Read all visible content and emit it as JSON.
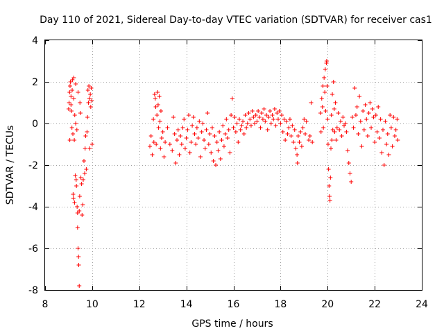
{
  "chart_data": {
    "type": "scatter",
    "title": "Day 110 of 2021, Sidereal Day-to-day VTEC variation (SDTVAR) for receiver cas1",
    "xlabel": "GPS time / hours",
    "ylabel": "SDTVAR / TECUs",
    "xlim": [
      8,
      24
    ],
    "ylim": [
      -8,
      4
    ],
    "xticks": [
      8,
      10,
      12,
      14,
      16,
      18,
      20,
      22,
      24
    ],
    "yticks": [
      -8,
      -6,
      -4,
      -2,
      0,
      2,
      4
    ],
    "xtick_labels": [
      "8",
      "10",
      "12",
      "14",
      "16",
      "18",
      "20",
      "22",
      "24"
    ],
    "ytick_labels": [
      "-8",
      "-6",
      "-4",
      "-2",
      "0",
      "2",
      "4"
    ],
    "grid": true,
    "marker": "+",
    "color": "#ff0000",
    "series": [
      {
        "name": "SDTVAR",
        "points": [
          [
            9.0,
            0.7
          ],
          [
            9.02,
            1.0
          ],
          [
            9.04,
            1.5
          ],
          [
            9.05,
            -0.8
          ],
          [
            9.06,
            1.8
          ],
          [
            9.08,
            2.0
          ],
          [
            9.1,
            1.3
          ],
          [
            9.1,
            0.9
          ],
          [
            9.12,
            0.6
          ],
          [
            9.14,
            -0.2
          ],
          [
            9.15,
            1.6
          ],
          [
            9.16,
            2.1
          ],
          [
            9.18,
            -0.5
          ],
          [
            9.19,
            -3.4
          ],
          [
            9.2,
            -3.6
          ],
          [
            9.22,
            2.2
          ],
          [
            9.22,
            1.2
          ],
          [
            9.24,
            -0.8
          ],
          [
            9.25,
            -3.8
          ],
          [
            9.26,
            0.4
          ],
          [
            9.28,
            -2.5
          ],
          [
            9.3,
            1.9
          ],
          [
            9.3,
            0.0
          ],
          [
            9.32,
            -2.7
          ],
          [
            9.33,
            -3.0
          ],
          [
            9.35,
            -0.3
          ],
          [
            9.36,
            -4.0
          ],
          [
            9.38,
            -4.3
          ],
          [
            9.38,
            -5.0
          ],
          [
            9.4,
            1.5
          ],
          [
            9.4,
            -6.0
          ],
          [
            9.42,
            -6.4
          ],
          [
            9.43,
            -6.8
          ],
          [
            9.45,
            -7.8
          ],
          [
            9.45,
            -4.2
          ],
          [
            9.47,
            -3.5
          ],
          [
            9.48,
            1.0
          ],
          [
            9.5,
            0.5
          ],
          [
            9.52,
            -2.6
          ],
          [
            9.55,
            -2.9
          ],
          [
            9.57,
            -4.4
          ],
          [
            9.6,
            -3.9
          ],
          [
            9.62,
            -2.7
          ],
          [
            9.65,
            -1.8
          ],
          [
            9.68,
            -2.4
          ],
          [
            9.7,
            -1.2
          ],
          [
            9.72,
            -0.6
          ],
          [
            9.75,
            -2.2
          ],
          [
            9.78,
            -0.4
          ],
          [
            9.8,
            0.3
          ],
          [
            9.82,
            1.6
          ],
          [
            9.84,
            1.0
          ],
          [
            9.86,
            1.8
          ],
          [
            9.88,
            1.2
          ],
          [
            9.9,
            -1.2
          ],
          [
            9.92,
            1.4
          ],
          [
            9.94,
            0.8
          ],
          [
            9.96,
            1.7
          ],
          [
            9.98,
            1.1
          ],
          [
            10.0,
            -1.0
          ],
          [
            12.45,
            -1.1
          ],
          [
            12.5,
            -0.6
          ],
          [
            12.55,
            -1.5
          ],
          [
            12.6,
            0.2
          ],
          [
            12.62,
            -0.9
          ],
          [
            12.65,
            1.4
          ],
          [
            12.68,
            1.2
          ],
          [
            12.7,
            0.8
          ],
          [
            12.72,
            -1.0
          ],
          [
            12.75,
            0.4
          ],
          [
            12.78,
            1.5
          ],
          [
            12.8,
            0.9
          ],
          [
            12.82,
            -0.2
          ],
          [
            12.85,
            1.3
          ],
          [
            12.88,
            0.1
          ],
          [
            12.9,
            -1.2
          ],
          [
            12.92,
            0.6
          ],
          [
            12.95,
            -0.7
          ],
          [
            13.0,
            -0.4
          ],
          [
            13.05,
            -1.6
          ],
          [
            13.1,
            -0.9
          ],
          [
            13.2,
            -0.2
          ],
          [
            13.3,
            -1.0
          ],
          [
            13.4,
            -1.3
          ],
          [
            13.45,
            0.3
          ],
          [
            13.5,
            -0.5
          ],
          [
            13.55,
            -1.9
          ],
          [
            13.6,
            -0.8
          ],
          [
            13.65,
            -0.3
          ],
          [
            13.7,
            -1.5
          ],
          [
            13.75,
            -0.6
          ],
          [
            13.8,
            -1.0
          ],
          [
            13.85,
            -0.2
          ],
          [
            13.9,
            0.2
          ],
          [
            13.95,
            -1.2
          ],
          [
            14.0,
            -0.7
          ],
          [
            14.05,
            -0.3
          ],
          [
            14.1,
            0.4
          ],
          [
            14.15,
            -1.4
          ],
          [
            14.2,
            -0.9
          ],
          [
            14.25,
            -0.1
          ],
          [
            14.3,
            0.3
          ],
          [
            14.35,
            -0.5
          ],
          [
            14.4,
            -1.0
          ],
          [
            14.45,
            -0.2
          ],
          [
            14.5,
            -0.7
          ],
          [
            14.55,
            0.1
          ],
          [
            14.6,
            -1.6
          ],
          [
            14.65,
            -0.4
          ],
          [
            14.7,
            0.0
          ],
          [
            14.75,
            -0.8
          ],
          [
            14.8,
            -1.2
          ],
          [
            14.85,
            -0.3
          ],
          [
            14.9,
            0.5
          ],
          [
            14.95,
            -1.0
          ],
          [
            15.0,
            -0.5
          ],
          [
            15.05,
            -1.4
          ],
          [
            15.1,
            -0.2
          ],
          [
            15.15,
            -1.8
          ],
          [
            15.2,
            -0.6
          ],
          [
            15.25,
            -2.0
          ],
          [
            15.3,
            -0.9
          ],
          [
            15.35,
            -1.3
          ],
          [
            15.4,
            -0.4
          ],
          [
            15.45,
            -1.7
          ],
          [
            15.5,
            -0.8
          ],
          [
            15.55,
            -0.1
          ],
          [
            15.6,
            -1.1
          ],
          [
            15.65,
            -0.5
          ],
          [
            15.7,
            0.2
          ],
          [
            15.75,
            -0.7
          ],
          [
            15.8,
            -0.3
          ],
          [
            15.85,
            -1.4
          ],
          [
            15.9,
            0.4
          ],
          [
            15.95,
            1.2
          ],
          [
            16.0,
            -0.2
          ],
          [
            16.05,
            0.3
          ],
          [
            16.1,
            -0.4
          ],
          [
            16.15,
            0.0
          ],
          [
            16.2,
            -0.9
          ],
          [
            16.25,
            0.2
          ],
          [
            16.3,
            -0.3
          ],
          [
            16.35,
            -0.1
          ],
          [
            16.4,
            0.1
          ],
          [
            16.45,
            -0.5
          ],
          [
            16.5,
            0.4
          ],
          [
            16.55,
            -0.2
          ],
          [
            16.6,
            0.0
          ],
          [
            16.65,
            0.5
          ],
          [
            16.7,
            0.2
          ],
          [
            16.75,
            -0.1
          ],
          [
            16.8,
            0.6
          ],
          [
            16.85,
            0.3
          ],
          [
            16.9,
            0.0
          ],
          [
            16.95,
            0.4
          ],
          [
            17.0,
            0.1
          ],
          [
            17.05,
            0.6
          ],
          [
            17.1,
            0.3
          ],
          [
            17.15,
            -0.2
          ],
          [
            17.2,
            0.5
          ],
          [
            17.25,
            0.2
          ],
          [
            17.3,
            0.7
          ],
          [
            17.35,
            0.1
          ],
          [
            17.4,
            0.4
          ],
          [
            17.45,
            -0.3
          ],
          [
            17.5,
            0.3
          ],
          [
            17.55,
            0.6
          ],
          [
            17.6,
            0.0
          ],
          [
            17.65,
            0.4
          ],
          [
            17.7,
            0.2
          ],
          [
            17.75,
            0.7
          ],
          [
            17.8,
            -0.1
          ],
          [
            17.85,
            0.5
          ],
          [
            17.9,
            0.2
          ],
          [
            17.95,
            0.6
          ],
          [
            18.0,
            0.0
          ],
          [
            18.05,
            0.4
          ],
          [
            18.1,
            -0.4
          ],
          [
            18.15,
            0.2
          ],
          [
            18.2,
            -0.8
          ],
          [
            18.25,
            0.1
          ],
          [
            18.3,
            -0.5
          ],
          [
            18.35,
            -0.2
          ],
          [
            18.4,
            0.2
          ],
          [
            18.45,
            -0.6
          ],
          [
            18.5,
            -0.1
          ],
          [
            18.55,
            -0.9
          ],
          [
            18.6,
            -0.3
          ],
          [
            18.65,
            -1.2
          ],
          [
            18.7,
            -1.5
          ],
          [
            18.72,
            -1.9
          ],
          [
            18.75,
            -0.6
          ],
          [
            18.8,
            -0.9
          ],
          [
            18.85,
            -0.4
          ],
          [
            18.9,
            -1.1
          ],
          [
            18.95,
            -0.2
          ],
          [
            19.0,
            0.2
          ],
          [
            19.05,
            -0.5
          ],
          [
            19.1,
            0.1
          ],
          [
            19.2,
            -0.8
          ],
          [
            19.25,
            -0.6
          ],
          [
            19.3,
            1.0
          ],
          [
            19.35,
            -0.9
          ],
          [
            19.7,
            0.5
          ],
          [
            19.72,
            -0.4
          ],
          [
            19.75,
            1.2
          ],
          [
            19.78,
            0.8
          ],
          [
            19.8,
            1.8
          ],
          [
            19.82,
            -0.2
          ],
          [
            19.85,
            2.2
          ],
          [
            19.88,
            1.5
          ],
          [
            19.9,
            2.6
          ],
          [
            19.92,
            0.6
          ],
          [
            19.95,
            2.9
          ],
          [
            19.96,
            3.0
          ],
          [
            19.98,
            1.8
          ],
          [
            20.0,
            0.2
          ],
          [
            20.02,
            -1.0
          ],
          [
            20.04,
            -2.2
          ],
          [
            20.06,
            -3.0
          ],
          [
            20.08,
            -3.5
          ],
          [
            20.1,
            -3.7
          ],
          [
            20.12,
            -2.6
          ],
          [
            20.14,
            -1.2
          ],
          [
            20.16,
            0.4
          ],
          [
            20.18,
            -0.8
          ],
          [
            20.2,
            1.4
          ],
          [
            20.22,
            -0.3
          ],
          [
            20.25,
            2.0
          ],
          [
            20.28,
            0.7
          ],
          [
            20.3,
            -0.4
          ],
          [
            20.33,
            1.0
          ],
          [
            20.36,
            -0.8
          ],
          [
            20.4,
            -0.2
          ],
          [
            20.45,
            0.5
          ],
          [
            20.5,
            -0.3
          ],
          [
            20.55,
            0.1
          ],
          [
            20.6,
            -0.6
          ],
          [
            20.65,
            0.3
          ],
          [
            20.7,
            -0.1
          ],
          [
            20.75,
            0.0
          ],
          [
            20.8,
            -0.4
          ],
          [
            20.85,
            -1.3
          ],
          [
            20.9,
            -1.9
          ],
          [
            20.95,
            -2.4
          ],
          [
            21.0,
            -2.8
          ],
          [
            21.05,
            0.3
          ],
          [
            21.1,
            -0.2
          ],
          [
            21.15,
            1.7
          ],
          [
            21.2,
            0.4
          ],
          [
            21.25,
            0.8
          ],
          [
            21.3,
            -0.5
          ],
          [
            21.35,
            1.3
          ],
          [
            21.4,
            0.1
          ],
          [
            21.45,
            -1.1
          ],
          [
            21.5,
            0.6
          ],
          [
            21.55,
            -0.3
          ],
          [
            21.6,
            0.9
          ],
          [
            21.65,
            0.2
          ],
          [
            21.7,
            -0.6
          ],
          [
            21.75,
            0.5
          ],
          [
            21.8,
            1.0
          ],
          [
            21.85,
            -0.2
          ],
          [
            21.9,
            0.7
          ],
          [
            21.95,
            0.3
          ],
          [
            22.0,
            -0.9
          ],
          [
            22.05,
            0.4
          ],
          [
            22.1,
            -0.4
          ],
          [
            22.15,
            0.8
          ],
          [
            22.2,
            -0.7
          ],
          [
            22.25,
            0.2
          ],
          [
            22.3,
            -1.4
          ],
          [
            22.35,
            -0.3
          ],
          [
            22.4,
            -2.0
          ],
          [
            22.45,
            0.1
          ],
          [
            22.5,
            -1.0
          ],
          [
            22.55,
            -0.5
          ],
          [
            22.6,
            -1.5
          ],
          [
            22.65,
            0.4
          ],
          [
            22.7,
            -0.2
          ],
          [
            22.75,
            -1.1
          ],
          [
            22.8,
            0.3
          ],
          [
            22.85,
            -0.6
          ],
          [
            22.9,
            -0.3
          ],
          [
            22.95,
            0.2
          ],
          [
            22.98,
            -0.8
          ]
        ]
      }
    ]
  }
}
